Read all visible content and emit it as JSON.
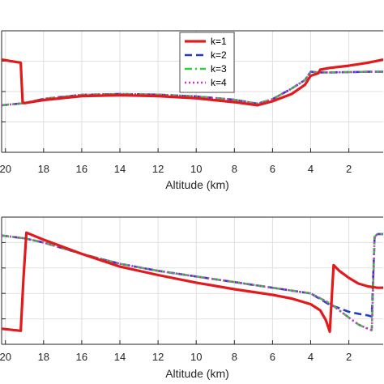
{
  "chart_data": [
    {
      "type": "line",
      "xlabel": "Altitude (km)",
      "xlim": [
        20.2,
        0.2
      ],
      "x_reversed": true,
      "ylim": [
        0,
        4
      ],
      "grid": true,
      "x_ticks": [
        20,
        18,
        16,
        14,
        12,
        10,
        8,
        6,
        4,
        2
      ],
      "x_tick_labels": [
        "20",
        "18",
        "16",
        "14",
        "12",
        "10",
        "8",
        "6",
        "4",
        "2"
      ],
      "legend": {
        "position": "top-center",
        "entries": [
          "k=1",
          "k=2",
          "k=3",
          "k=4"
        ]
      },
      "series": [
        {
          "name": "k=1",
          "color": "#e31a1c",
          "style": "solid",
          "x": [
            20.2,
            19.2,
            19.1,
            19.0,
            18.0,
            16.0,
            14.0,
            12.0,
            10.0,
            8.0,
            6.8,
            6.0,
            5.0,
            4.3,
            4.0,
            3.6,
            3.5,
            3.0,
            2.0,
            1.0,
            0.2
          ],
          "y": [
            3.05,
            2.95,
            1.65,
            1.62,
            1.72,
            1.85,
            1.88,
            1.85,
            1.78,
            1.65,
            1.55,
            1.68,
            1.92,
            2.22,
            2.52,
            2.6,
            2.72,
            2.78,
            2.85,
            2.95,
            3.05
          ]
        },
        {
          "name": "k=2",
          "color": "#1f3fbf",
          "style": "dashed",
          "x": [
            20.2,
            19.0,
            18.0,
            16.0,
            14.0,
            12.0,
            10.0,
            8.0,
            6.8,
            6.0,
            5.0,
            4.3,
            4.0,
            3.5,
            3.0,
            2.0,
            1.0,
            0.2
          ],
          "y": [
            1.55,
            1.62,
            1.76,
            1.89,
            1.92,
            1.9,
            1.84,
            1.73,
            1.6,
            1.75,
            2.1,
            2.38,
            2.65,
            2.63,
            2.63,
            2.64,
            2.65,
            2.65
          ]
        },
        {
          "name": "k=3",
          "color": "#2ecc40",
          "style": "dashdot",
          "x": [
            20.2,
            19.0,
            18.0,
            16.0,
            14.0,
            12.0,
            10.0,
            8.0,
            6.8,
            6.0,
            5.0,
            4.3,
            4.0,
            3.5,
            3.0,
            2.0,
            1.0,
            0.2
          ],
          "y": [
            1.55,
            1.62,
            1.76,
            1.89,
            1.92,
            1.9,
            1.84,
            1.73,
            1.6,
            1.75,
            2.1,
            2.38,
            2.65,
            2.63,
            2.63,
            2.64,
            2.65,
            2.65
          ]
        },
        {
          "name": "k=4",
          "color": "#cc33cc",
          "style": "dotted",
          "x": [
            20.2,
            19.0,
            18.0,
            16.0,
            14.0,
            12.0,
            10.0,
            8.0,
            6.8,
            6.0,
            5.0,
            4.3,
            4.0,
            3.5,
            3.0,
            2.0,
            1.0,
            0.2
          ],
          "y": [
            1.55,
            1.62,
            1.76,
            1.89,
            1.92,
            1.9,
            1.84,
            1.73,
            1.6,
            1.75,
            2.1,
            2.38,
            2.65,
            2.63,
            2.63,
            2.64,
            2.65,
            2.65
          ]
        }
      ]
    },
    {
      "type": "line",
      "xlabel": "Altitude (km)",
      "xlim": [
        20.2,
        0.2
      ],
      "x_reversed": true,
      "ylim": [
        0,
        4.5
      ],
      "grid": true,
      "x_ticks": [
        20,
        18,
        16,
        14,
        12,
        10,
        8,
        6,
        4,
        2
      ],
      "x_tick_labels": [
        "20",
        "18",
        "16",
        "14",
        "12",
        "10",
        "8",
        "6",
        "4",
        "2"
      ],
      "series": [
        {
          "name": "k=1",
          "color": "#e31a1c",
          "style": "solid",
          "x": [
            20.2,
            19.2,
            19.05,
            18.9,
            18.0,
            16.0,
            14.0,
            12.0,
            10.0,
            8.0,
            6.0,
            5.0,
            4.0,
            3.5,
            3.2,
            3.0,
            2.9,
            2.8,
            2.5,
            2.0,
            1.5,
            1.0,
            0.5,
            0.2
          ],
          "y": [
            0.55,
            0.48,
            2.4,
            3.95,
            3.7,
            3.2,
            2.75,
            2.45,
            2.18,
            1.95,
            1.75,
            1.62,
            1.42,
            1.2,
            0.85,
            0.45,
            1.6,
            2.8,
            2.6,
            2.35,
            2.15,
            2.05,
            2.0,
            2.0
          ]
        },
        {
          "name": "k=2",
          "color": "#1f3fbf",
          "style": "dashed",
          "x": [
            20.2,
            19.0,
            18.0,
            16.0,
            14.0,
            12.0,
            10.0,
            8.0,
            6.0,
            4.0,
            3.0,
            2.0,
            1.5,
            1.0,
            0.8,
            0.65,
            0.5,
            0.2
          ],
          "y": [
            3.85,
            3.75,
            3.6,
            3.2,
            2.85,
            2.6,
            2.4,
            2.2,
            2.0,
            1.8,
            1.4,
            1.15,
            1.08,
            1.02,
            0.98,
            3.8,
            3.9,
            3.9
          ]
        },
        {
          "name": "k=3",
          "color": "#2ecc40",
          "style": "dashdot",
          "x": [
            20.2,
            19.0,
            18.0,
            16.0,
            14.0,
            12.0,
            10.0,
            8.0,
            6.0,
            4.0,
            3.0,
            2.0,
            1.5,
            1.0,
            0.8,
            0.65,
            0.5,
            0.2
          ],
          "y": [
            3.85,
            3.75,
            3.6,
            3.2,
            2.85,
            2.6,
            2.4,
            2.2,
            2.0,
            1.8,
            1.45,
            0.95,
            0.7,
            0.55,
            0.5,
            3.8,
            3.9,
            3.9
          ]
        },
        {
          "name": "k=4",
          "color": "#cc33cc",
          "style": "dotted",
          "x": [
            20.2,
            19.0,
            18.0,
            16.0,
            14.0,
            12.0,
            10.0,
            8.0,
            6.0,
            4.0,
            3.0,
            2.0,
            1.5,
            1.0,
            0.8,
            0.65,
            0.5,
            0.2
          ],
          "y": [
            3.85,
            3.75,
            3.6,
            3.2,
            2.85,
            2.6,
            2.4,
            2.2,
            2.0,
            1.8,
            1.45,
            0.95,
            0.7,
            0.55,
            0.5,
            3.8,
            3.9,
            3.9
          ]
        }
      ]
    }
  ]
}
